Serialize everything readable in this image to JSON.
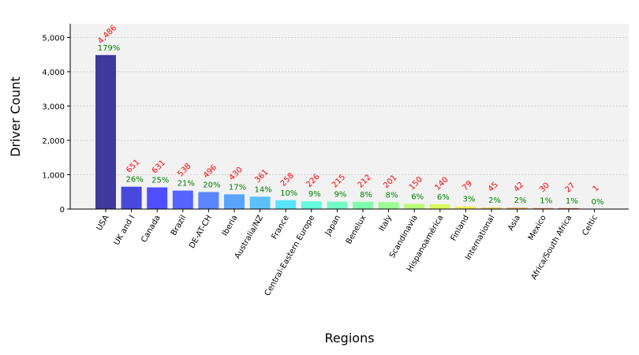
{
  "chart_data": {
    "type": "bar",
    "xlabel": "Regions",
    "ylabel": "Driver Count",
    "ylim": [
      0,
      5400
    ],
    "yticks": [
      0,
      1000,
      2000,
      3000,
      4000,
      5000
    ],
    "ytick_labels": [
      "0",
      "1,000",
      "2,000",
      "3,000",
      "4,000",
      "5,000"
    ],
    "grid": true,
    "background": "#f2f2f2",
    "categories": [
      "USA",
      "UK and I",
      "Canada",
      "Brazil",
      "DE-AT-CH",
      "Iberia",
      "Australia/NZ",
      "France",
      "Central-Eastern Europe",
      "Japan",
      "Benelux",
      "Italy",
      "Scandinavia",
      "Hispanoamérica",
      "Finland",
      "International",
      "Asia",
      "Mexico",
      "Africa/South Africa",
      "Celtic"
    ],
    "values": [
      4486,
      651,
      631,
      538,
      496,
      430,
      361,
      258,
      226,
      215,
      212,
      201,
      150,
      140,
      79,
      45,
      42,
      30,
      27,
      1
    ],
    "value_labels": [
      "4,486",
      "651",
      "631",
      "538",
      "496",
      "430",
      "361",
      "258",
      "226",
      "215",
      "212",
      "201",
      "150",
      "140",
      "79",
      "45",
      "42",
      "30",
      "27",
      "1"
    ],
    "percent_labels": [
      "179%",
      "26%",
      "25%",
      "21%",
      "20%",
      "17%",
      "14%",
      "10%",
      "9%",
      "9%",
      "8%",
      "8%",
      "6%",
      "6%",
      "3%",
      "2%",
      "2%",
      "1%",
      "1%",
      "0%"
    ],
    "colors": [
      "#1f1a8c",
      "#2a2ad8",
      "#3333ff",
      "#3b4cff",
      "#3f72ff",
      "#3f96ff",
      "#3fb8ff",
      "#3fe0ff",
      "#4dffd8",
      "#5cffbe",
      "#6cffa0",
      "#8cff80",
      "#b0ff60",
      "#d4ff40",
      "#f0f040",
      "#f0c840",
      "#f0a040",
      "#f07840",
      "#e04830",
      "#c02020"
    ],
    "value_label_color": "#ff0000",
    "percent_label_color": "#008000"
  }
}
